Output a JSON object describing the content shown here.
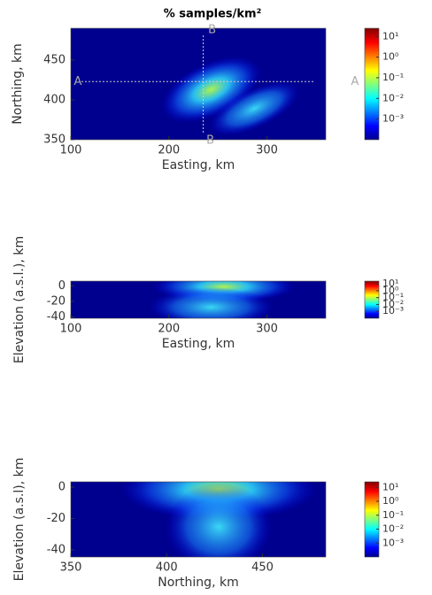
{
  "chart_data": [
    {
      "type": "heatmap",
      "title": "% samples/km²",
      "xlabel": "Easting, km",
      "ylabel": "Northing, km",
      "xlim": [
        100,
        360
      ],
      "ylim": [
        350,
        490
      ],
      "xticks": [
        100,
        200,
        300
      ],
      "yticks": [
        350,
        400,
        450
      ],
      "colorbar": {
        "scale": "log",
        "lim": [
          0.0001,
          25
        ],
        "ticks": [
          {
            "value": 10,
            "label": "10¹"
          },
          {
            "value": 1,
            "label": "10⁰"
          },
          {
            "value": 0.1,
            "label": "10⁻¹"
          },
          {
            "value": 0.01,
            "label": "10⁻²"
          },
          {
            "value": 0.001,
            "label": "10⁻³"
          }
        ]
      },
      "sections": [
        {
          "label": "A",
          "axis": "y",
          "value": 423
        },
        {
          "label": "B",
          "axis": "x",
          "value": 235
        }
      ]
    },
    {
      "type": "heatmap",
      "xlabel": "Easting, km",
      "ylabel": "Elevation (a.s.l.), km",
      "xlim": [
        100,
        360
      ],
      "ylim": [
        -42,
        6
      ],
      "xticks": [
        100,
        200,
        300
      ],
      "yticks": [
        0,
        -20,
        -40
      ],
      "colorbar": {
        "scale": "log",
        "lim": [
          0.0001,
          25
        ],
        "ticks": [
          {
            "value": 10,
            "label": "10¹"
          },
          {
            "value": 1,
            "label": "10⁰"
          },
          {
            "value": 0.1,
            "label": "10⁻¹"
          },
          {
            "value": 0.01,
            "label": "10⁻²"
          },
          {
            "value": 0.001,
            "label": "10⁻³"
          }
        ]
      }
    },
    {
      "type": "heatmap",
      "xlabel": "Northing, km",
      "ylabel": "Elevation (a.s.l), km",
      "xlim": [
        350,
        483
      ],
      "ylim": [
        -44.5,
        3.4
      ],
      "xticks": [
        350,
        400,
        450
      ],
      "yticks": [
        0,
        -20,
        -40
      ],
      "colorbar": {
        "scale": "log",
        "lim": [
          0.0001,
          25
        ],
        "ticks": [
          {
            "value": 10,
            "label": "10¹"
          },
          {
            "value": 1,
            "label": "10⁰"
          },
          {
            "value": 0.1,
            "label": "10⁻¹"
          },
          {
            "value": 0.01,
            "label": "10⁻²"
          },
          {
            "value": 0.001,
            "label": "10⁻³"
          }
        ]
      }
    }
  ]
}
